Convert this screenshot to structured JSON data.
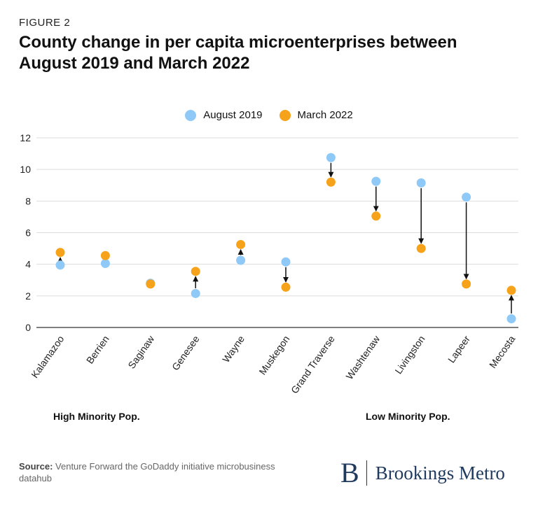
{
  "figure_label": "FIGURE 2",
  "title": "County change in per capita microenterprises between August 2019 and March 2022",
  "group_labels": {
    "left": "High Minority Pop.",
    "right": "Low Minority Pop."
  },
  "source": {
    "label": "Source:",
    "text": "Venture Forward the GoDaddy initiative microbusiness datahub"
  },
  "logo": {
    "mark": "B",
    "text": "Brookings Metro"
  },
  "colors": {
    "aug2019": "#8ec9f7",
    "mar2022": "#f7a21b",
    "arrow": "#111111",
    "grid": "#dddddd"
  },
  "chart_data": {
    "type": "scatter",
    "categories": [
      "Kalamazoo",
      "Berrien",
      "Saginaw",
      "Genesee",
      "Wayne",
      "Muskegon",
      "Grand Traverse",
      "Washtenaw",
      "Livingston",
      "Lapeer",
      "Mecosta"
    ],
    "series": [
      {
        "name": "August 2019",
        "values": [
          3.95,
          4.05,
          2.8,
          2.15,
          4.25,
          4.15,
          10.75,
          9.25,
          9.15,
          8.25,
          0.55
        ]
      },
      {
        "name": "March 2022",
        "values": [
          4.75,
          4.55,
          2.75,
          3.55,
          5.25,
          2.55,
          9.2,
          7.05,
          5.0,
          2.75,
          2.35
        ]
      }
    ],
    "ylim": [
      0,
      12
    ],
    "yticks": [
      0,
      2,
      4,
      6,
      8,
      10,
      12
    ],
    "legend_position": "top-center",
    "grid": true
  }
}
